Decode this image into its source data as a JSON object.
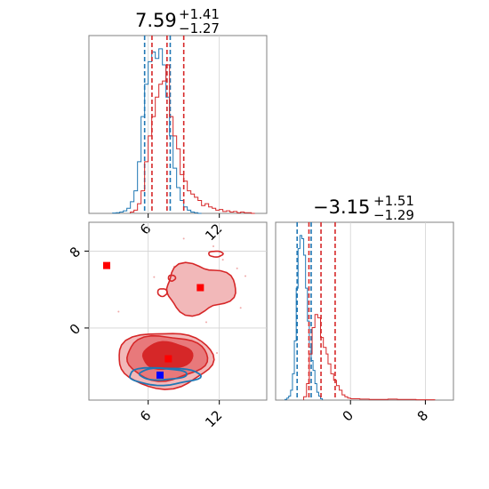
{
  "colors": {
    "blue": "#1f77b4",
    "red": "#d62728",
    "red_fill_light": "#f2b8b9",
    "red_fill_mid": "#e8797b",
    "red_fill_dark": "#d62728",
    "grid": "#d3d3d3",
    "axis": "#808080",
    "marker_blue": "#0000ff",
    "marker_red": "#ff0000"
  },
  "panels": {
    "top_title": {
      "value": "7.59",
      "upper": "+1.41",
      "lower": "−1.27"
    },
    "right_title": {
      "value": "−3.15",
      "upper": "+1.51",
      "lower": "−1.29"
    }
  },
  "chart_data": [
    {
      "type": "histogram",
      "panel": "param1-marginal",
      "x_range": [
        1,
        16
      ],
      "x_ticks": [
        "6",
        "12"
      ],
      "grid": true,
      "series": [
        {
          "color": "blue",
          "bin_edges": [
            3,
            3.3,
            3.6,
            3.9,
            4.2,
            4.5,
            4.8,
            5.1,
            5.4,
            5.7,
            6.0,
            6.3,
            6.6,
            6.9,
            7.2,
            7.5,
            7.8,
            8.1,
            8.4,
            8.7,
            9.0,
            9.3,
            9.6,
            9.9,
            10.2,
            10.5
          ],
          "counts": [
            0.5,
            1,
            2,
            4,
            8,
            18,
            35,
            80,
            150,
            200,
            235,
            250,
            240,
            255,
            230,
            180,
            120,
            70,
            40,
            20,
            10,
            5,
            2,
            1,
            0
          ],
          "quantile_lines": [
            5.7,
            7.86
          ]
        },
        {
          "color": "red",
          "bin_edges": [
            4.5,
            4.8,
            5.1,
            5.4,
            5.7,
            6.0,
            6.3,
            6.6,
            6.9,
            7.2,
            7.5,
            7.8,
            8.1,
            8.4,
            8.7,
            9.0,
            9.3,
            9.6,
            9.9,
            10.2,
            10.5,
            10.8,
            11.1,
            11.4,
            11.7,
            12.0,
            12.3,
            12.6,
            12.9,
            13.2,
            13.5,
            13.8,
            14.1,
            14.4,
            14.7,
            15.0
          ],
          "counts": [
            2,
            5,
            15,
            35,
            80,
            120,
            150,
            180,
            200,
            205,
            230,
            150,
            120,
            100,
            60,
            50,
            35,
            30,
            25,
            20,
            12,
            15,
            10,
            8,
            5,
            6,
            3,
            4,
            2,
            3,
            1,
            2,
            1,
            1,
            0
          ],
          "quantile_lines": [
            6.32,
            7.59,
            9.0
          ]
        }
      ]
    },
    {
      "type": "histogram",
      "panel": "param2-marginal",
      "x_range": [
        -8,
        11
      ],
      "x_ticks": [
        "0",
        "8"
      ],
      "grid": true,
      "series": [
        {
          "color": "blue",
          "bin_edges": [
            -7.0,
            -6.8,
            -6.6,
            -6.4,
            -6.2,
            -6.0,
            -5.8,
            -5.6,
            -5.4,
            -5.2,
            -5.0,
            -4.8,
            -4.6,
            -4.4,
            -4.2,
            -4.0,
            -3.8,
            -3.6,
            -3.4,
            -3.2,
            -3.0
          ],
          "counts": [
            1,
            3,
            6,
            15,
            40,
            90,
            170,
            230,
            250,
            245,
            220,
            170,
            120,
            80,
            60,
            45,
            25,
            12,
            6,
            2
          ],
          "quantile_lines": [
            -5.7,
            -4.2
          ]
        },
        {
          "color": "red",
          "bin_edges": [
            -5.0,
            -4.7,
            -4.4,
            -4.1,
            -3.8,
            -3.5,
            -3.2,
            -2.9,
            -2.6,
            -2.4,
            -2.1,
            -1.8,
            -1.5,
            -1.2,
            -0.9,
            -0.6,
            -0.3,
            0.0,
            1,
            2,
            3,
            4,
            5,
            6,
            7,
            8,
            9
          ],
          "counts": [
            5,
            25,
            70,
            110,
            130,
            125,
            95,
            80,
            70,
            55,
            40,
            30,
            22,
            15,
            8,
            5,
            3,
            2,
            1.5,
            1,
            1,
            1.5,
            1,
            1,
            0.5,
            0.5
          ],
          "quantile_lines": [
            -4.44,
            -3.15,
            -1.64
          ]
        }
      ]
    },
    {
      "type": "contour",
      "panel": "joint",
      "x_range": [
        1,
        16
      ],
      "y_range": [
        -7.5,
        11
      ],
      "x_ticks": [
        "6",
        "12"
      ],
      "y_ticks": [
        "8",
        "0"
      ],
      "grid": true,
      "markers": [
        {
          "color": "marker_red",
          "x": 2.5,
          "y": 6.5
        },
        {
          "color": "marker_red",
          "x": 10.4,
          "y": 4.2
        },
        {
          "color": "marker_red",
          "x": 7.7,
          "y": -3.2
        },
        {
          "color": "marker_blue",
          "x": 7.0,
          "y": -4.9
        }
      ]
    }
  ]
}
